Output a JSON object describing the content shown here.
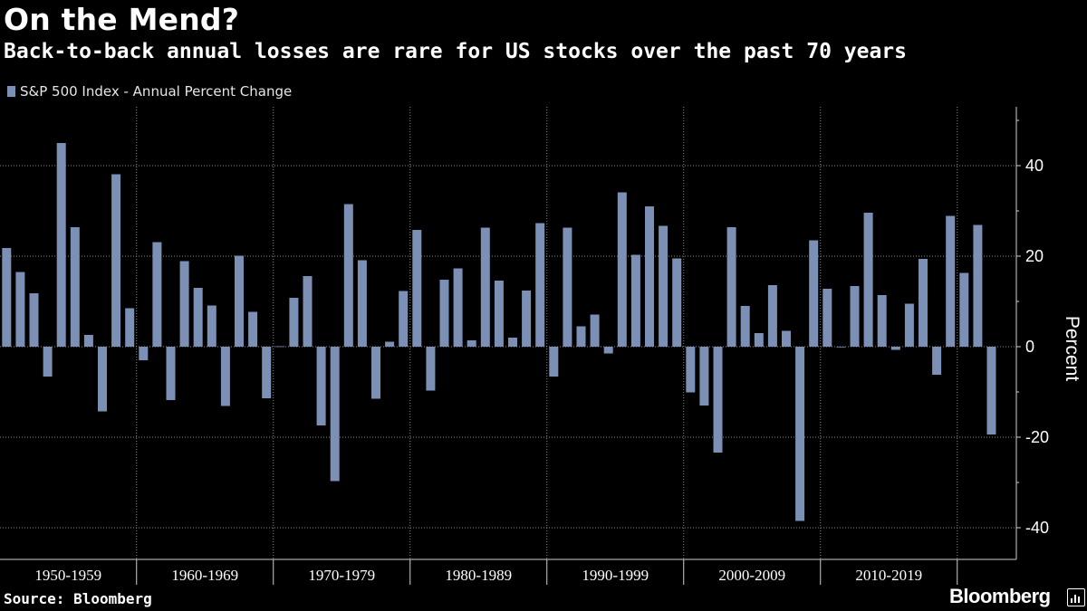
{
  "title": "On the Mend?",
  "subtitle": "Back-to-back annual losses are rare for US stocks over the past 70 years",
  "source": "Source: Bloomberg",
  "brand": "Bloomberg",
  "colors": {
    "bar": "#7b90b4",
    "background": "#000000",
    "grid": "#8a8a8a",
    "text": "#ffffff"
  },
  "chart_data": {
    "type": "bar",
    "ylabel": "Percent",
    "ylim": [
      -47,
      53
    ],
    "yticks": [
      -40,
      -20,
      0,
      20,
      40
    ],
    "y_axis_position": "right",
    "grid": true,
    "legend_placement": "top-left",
    "series": [
      {
        "name": "S&P 500 Index - Annual Percent Change",
        "x": [
          1950,
          1951,
          1952,
          1953,
          1954,
          1955,
          1956,
          1957,
          1958,
          1959,
          1960,
          1961,
          1962,
          1963,
          1964,
          1965,
          1966,
          1967,
          1968,
          1969,
          1970,
          1971,
          1972,
          1973,
          1974,
          1975,
          1976,
          1977,
          1978,
          1979,
          1980,
          1981,
          1982,
          1983,
          1984,
          1985,
          1986,
          1987,
          1988,
          1989,
          1990,
          1991,
          1992,
          1993,
          1994,
          1995,
          1996,
          1997,
          1998,
          1999,
          2000,
          2001,
          2002,
          2003,
          2004,
          2005,
          2006,
          2007,
          2008,
          2009,
          2010,
          2011,
          2012,
          2013,
          2014,
          2015,
          2016,
          2017,
          2018,
          2019,
          2020,
          2021,
          2022
        ],
        "values": [
          21.8,
          16.5,
          11.8,
          -6.6,
          45.0,
          26.4,
          2.6,
          -14.3,
          38.1,
          8.5,
          -3.0,
          23.1,
          -11.8,
          18.9,
          13.0,
          9.1,
          -13.1,
          20.1,
          7.7,
          -11.4,
          0.1,
          10.8,
          15.6,
          -17.4,
          -29.7,
          31.5,
          19.1,
          -11.5,
          1.1,
          12.3,
          25.8,
          -9.7,
          14.8,
          17.3,
          1.4,
          26.3,
          14.6,
          2.0,
          12.4,
          27.3,
          -6.6,
          26.3,
          4.5,
          7.1,
          -1.5,
          34.1,
          20.3,
          31.0,
          26.7,
          19.5,
          -10.1,
          -13.0,
          -23.4,
          26.4,
          9.0,
          3.0,
          13.6,
          3.5,
          -38.5,
          23.5,
          12.8,
          0.0,
          13.4,
          29.6,
          11.4,
          -0.7,
          9.5,
          19.4,
          -6.2,
          28.9,
          16.3,
          26.9,
          -19.4
        ]
      }
    ],
    "decade_labels": [
      "1950-1959",
      "1960-1969",
      "1970-1979",
      "1980-1989",
      "1990-1999",
      "2000-2009",
      "2010-2019"
    ]
  }
}
